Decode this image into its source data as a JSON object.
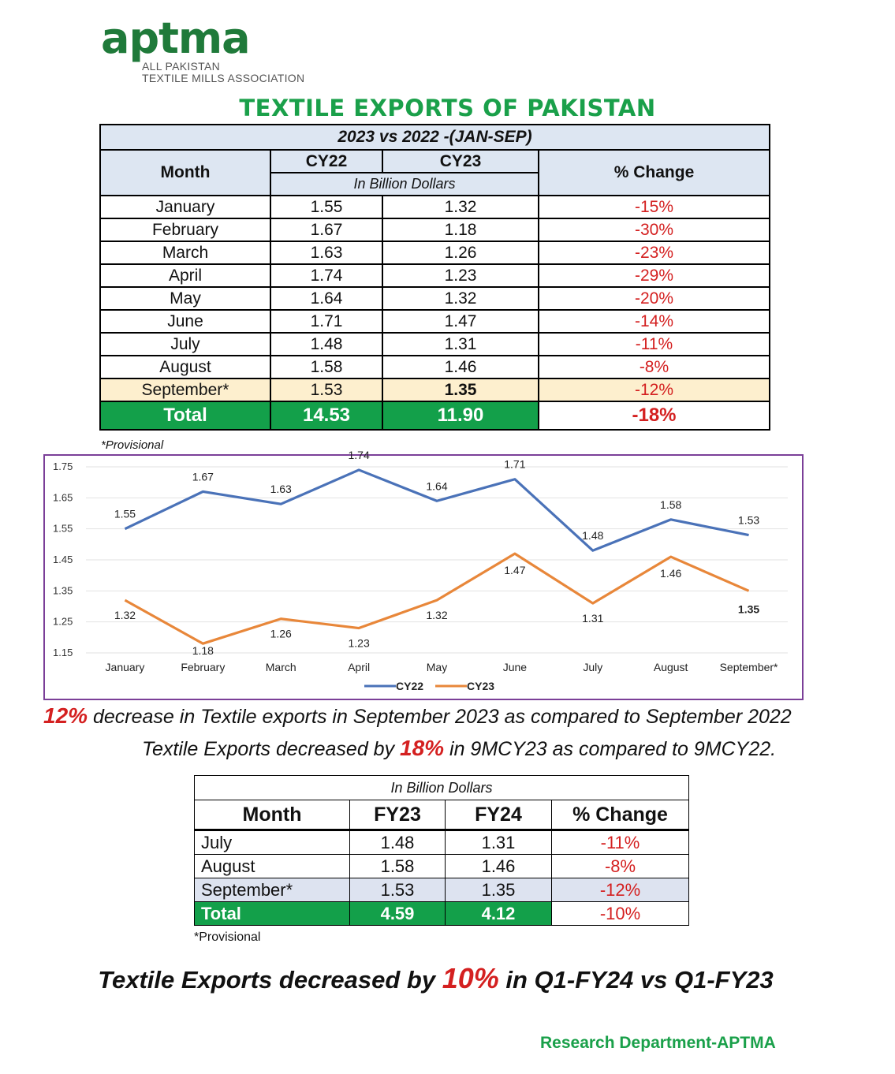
{
  "logo": {
    "word": "aptma",
    "line1": "ALL PAKISTAN",
    "line2": "TEXTILE MILLS ASSOCIATION"
  },
  "title": "TEXTILE EXPORTS OF PAKISTAN",
  "table1": {
    "caption": "2023 vs 2022 -(JAN-SEP)",
    "col_month": "Month",
    "col_a": "CY22",
    "col_b": "CY23",
    "unit": "In Billion Dollars",
    "col_change": "% Change",
    "rows": [
      {
        "month": "January",
        "a": "1.55",
        "b": "1.32",
        "change": "-15%"
      },
      {
        "month": "February",
        "a": "1.67",
        "b": "1.18",
        "change": "-30%"
      },
      {
        "month": "March",
        "a": "1.63",
        "b": "1.26",
        "change": "-23%"
      },
      {
        "month": "April",
        "a": "1.74",
        "b": "1.23",
        "change": "-29%"
      },
      {
        "month": "May",
        "a": "1.64",
        "b": "1.32",
        "change": "-20%"
      },
      {
        "month": "June",
        "a": "1.71",
        "b": "1.47",
        "change": "-14%"
      },
      {
        "month": "July",
        "a": "1.48",
        "b": "1.31",
        "change": "-11%"
      },
      {
        "month": "August",
        "a": "1.58",
        "b": "1.46",
        "change": "-8%"
      },
      {
        "month": "September*",
        "a": "1.53",
        "b": "1.35",
        "change": "-12%"
      }
    ],
    "total": {
      "label": "Total",
      "a": "14.53",
      "b": "11.90",
      "change": "-18%"
    },
    "footnote": "*Provisional"
  },
  "chart_data": {
    "type": "line",
    "categories": [
      "January",
      "February",
      "March",
      "April",
      "May",
      "June",
      "July",
      "August",
      "September*"
    ],
    "series": [
      {
        "name": "CY22",
        "color": "#4a72b8",
        "values": [
          1.55,
          1.67,
          1.63,
          1.74,
          1.64,
          1.71,
          1.48,
          1.58,
          1.53
        ]
      },
      {
        "name": "CY23",
        "color": "#e8873a",
        "values": [
          1.32,
          1.18,
          1.26,
          1.23,
          1.32,
          1.47,
          1.31,
          1.46,
          1.35
        ]
      }
    ],
    "yticks": [
      "1.75",
      "1.65",
      "1.55",
      "1.45",
      "1.35",
      "1.25",
      "1.15"
    ],
    "ylim": [
      1.15,
      1.75
    ],
    "grid": true,
    "legend": "bottom-center",
    "border_color": "#7b3f98"
  },
  "note1": {
    "pct": "12%",
    "text": " decrease in Textile exports in September 2023 as compared to September 2022"
  },
  "note2": {
    "pre": "Textile Exports decreased by ",
    "pct": "18%",
    "post": " in 9MCY23 as compared to 9MCY22."
  },
  "table2": {
    "unit": "In Billion Dollars",
    "col_month": "Month",
    "col_a": "FY23",
    "col_b": "FY24",
    "col_change": "% Change",
    "rows": [
      {
        "month": "July",
        "a": "1.48",
        "b": "1.31",
        "change": "-11%"
      },
      {
        "month": "August",
        "a": "1.58",
        "b": "1.46",
        "change": "-8%"
      },
      {
        "month": "September*",
        "a": "1.53",
        "b": "1.35",
        "change": "-12%"
      }
    ],
    "total": {
      "label": "Total",
      "a": "4.59",
      "b": "4.12",
      "change": "-10%"
    },
    "footnote": "*Provisional"
  },
  "final": {
    "pre": "Textile Exports decreased by ",
    "pct": "10%",
    "post": " in Q1-FY24 vs Q1-FY23"
  },
  "footer": "Research Department-APTMA"
}
